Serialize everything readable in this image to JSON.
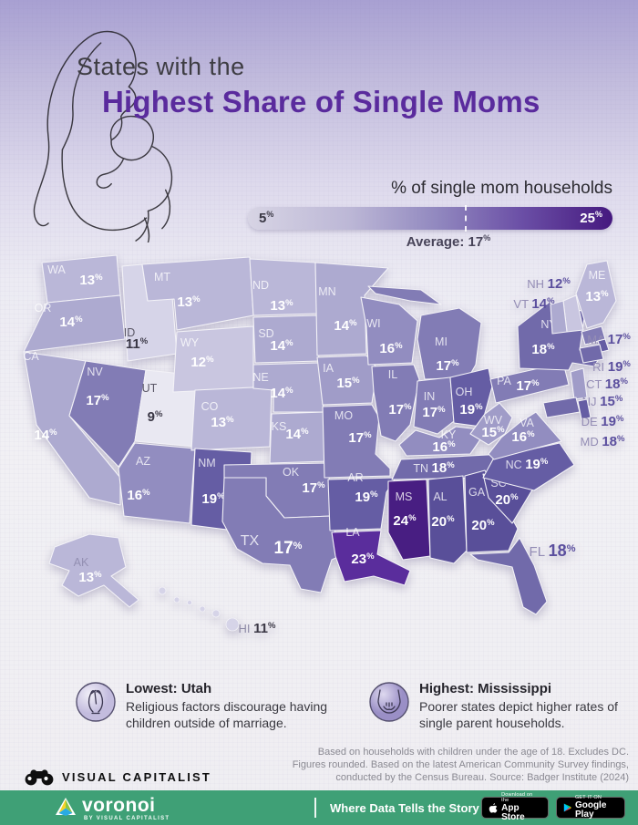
{
  "title": {
    "prefix": "States with the",
    "main": "Highest Share of Single Moms"
  },
  "legend": {
    "title": "% of single mom households",
    "min": "5",
    "max": "25",
    "percent_sign": "%",
    "average_prefix": "Average: ",
    "average_value": "17",
    "gradient_start": "#d7d4e4",
    "gradient_end": "#45197f"
  },
  "map": {
    "value_colors": {
      "9": "#e9e8f2",
      "11": "#d6d4e8",
      "12": "#c9c6e0",
      "13": "#bab7d8",
      "14": "#adaad0",
      "15": "#a09cc8",
      "16": "#928dc0",
      "17": "#827cb5",
      "18": "#716aaa",
      "19": "#655da4",
      "20": "#594f99",
      "23": "#5a2d9c",
      "24": "#481e82"
    },
    "abbr_light_color": "rgba(255,255,255,0.78)",
    "value_light_color": "#ffffff",
    "abbr_dark_color": "#5a5766",
    "value_dark_color": "#3a3745",
    "outside_abbr_color": "#948db5",
    "outside_value_color": "#5b4f9e"
  },
  "callouts": [
    {
      "icon": "praying-hands-icon",
      "heading": "Lowest: Utah",
      "body": "Religious factors discourage having children outside of marriage."
    },
    {
      "icon": "cupped-hands-icon",
      "heading": "Highest: Mississippi",
      "body": "Poorer states depict higher rates of single parent households."
    }
  ],
  "source_lines": [
    "Based on households with children under the age of 18. Excludes DC.",
    "Figures rounded. Based on the latest American Community Survey findings,",
    "conducted by the Census Bureau. Source: Badger Institute (2024)"
  ],
  "publisher": {
    "name": "VISUAL CAPITALIST"
  },
  "footer": {
    "brand": "voronoi",
    "brand_sub": "BY VISUAL CAPITALIST",
    "tagline": "Where Data Tells the Story",
    "bg": "#3fa076",
    "badges": [
      {
        "line1": "Download on the",
        "line2": "App Store"
      },
      {
        "line1": "GET IT ON",
        "line2": "Google Play"
      }
    ]
  },
  "chart_data": {
    "type": "heatmap",
    "subtype": "us_state_choropleth",
    "title": "States with the Highest Share of Single Moms",
    "legend_title": "% of single mom households",
    "unit": "%",
    "scale": {
      "min": 5,
      "max": 25,
      "average": 17
    },
    "states": [
      {
        "abbr": "WA",
        "value": 13
      },
      {
        "abbr": "OR",
        "value": 14
      },
      {
        "abbr": "CA",
        "value": 14
      },
      {
        "abbr": "ID",
        "value": 11
      },
      {
        "abbr": "NV",
        "value": 17
      },
      {
        "abbr": "UT",
        "value": 9
      },
      {
        "abbr": "AZ",
        "value": 16
      },
      {
        "abbr": "MT",
        "value": 13
      },
      {
        "abbr": "WY",
        "value": 12
      },
      {
        "abbr": "CO",
        "value": 13
      },
      {
        "abbr": "NM",
        "value": 19
      },
      {
        "abbr": "ND",
        "value": 13
      },
      {
        "abbr": "SD",
        "value": 14
      },
      {
        "abbr": "NE",
        "value": 14
      },
      {
        "abbr": "KS",
        "value": 14
      },
      {
        "abbr": "OK",
        "value": 17
      },
      {
        "abbr": "TX",
        "value": 17
      },
      {
        "abbr": "MN",
        "value": 14
      },
      {
        "abbr": "IA",
        "value": 15
      },
      {
        "abbr": "MO",
        "value": 17
      },
      {
        "abbr": "AR",
        "value": 19
      },
      {
        "abbr": "LA",
        "value": 23
      },
      {
        "abbr": "WI",
        "value": 16
      },
      {
        "abbr": "IL",
        "value": 17
      },
      {
        "abbr": "MI",
        "value": 17
      },
      {
        "abbr": "IN",
        "value": 17
      },
      {
        "abbr": "OH",
        "value": 19
      },
      {
        "abbr": "KY",
        "value": 16
      },
      {
        "abbr": "TN",
        "value": 18
      },
      {
        "abbr": "MS",
        "value": 24
      },
      {
        "abbr": "AL",
        "value": 20
      },
      {
        "abbr": "GA",
        "value": 20
      },
      {
        "abbr": "SC",
        "value": 20
      },
      {
        "abbr": "NC",
        "value": 19
      },
      {
        "abbr": "VA",
        "value": 16
      },
      {
        "abbr": "WV",
        "value": 15
      },
      {
        "abbr": "PA",
        "value": 17
      },
      {
        "abbr": "NY",
        "value": 18
      },
      {
        "abbr": "FL",
        "value": 18
      },
      {
        "abbr": "ME",
        "value": 13
      },
      {
        "abbr": "NH",
        "value": 12
      },
      {
        "abbr": "VT",
        "value": 14
      },
      {
        "abbr": "MA",
        "value": 17
      },
      {
        "abbr": "RI",
        "value": 19
      },
      {
        "abbr": "CT",
        "value": 18
      },
      {
        "abbr": "NJ",
        "value": 15
      },
      {
        "abbr": "DE",
        "value": 19
      },
      {
        "abbr": "MD",
        "value": 18
      },
      {
        "abbr": "AK",
        "value": 13
      },
      {
        "abbr": "HI",
        "value": 11
      }
    ]
  }
}
